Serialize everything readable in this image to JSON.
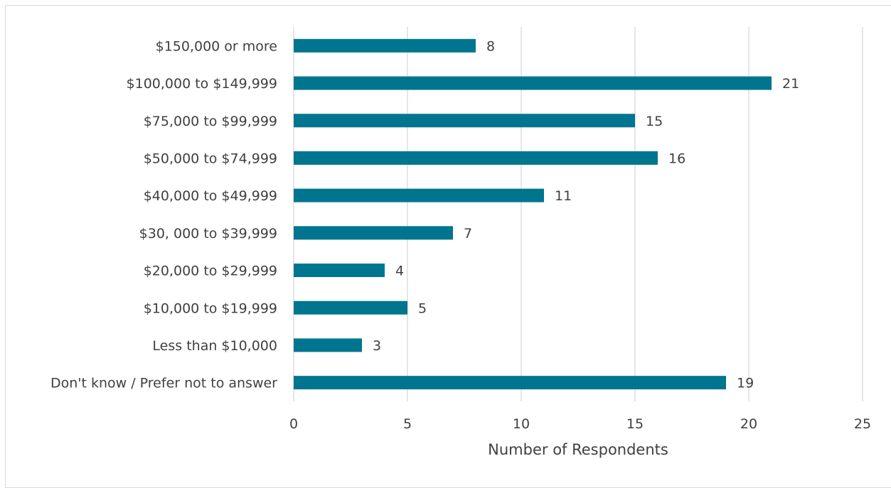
{
  "chart_data": {
    "type": "bar",
    "orientation": "horizontal",
    "categories": [
      "$150,000 or more",
      "$100,000 to $149,999",
      "$75,000 to $99,999",
      "$50,000 to $74,999",
      "$40,000 to $49,999",
      "$30, 000 to $39,999",
      "$20,000 to $29,999",
      "$10,000 to $19,999",
      "Less than $10,000",
      "Don't know / Prefer not to answer"
    ],
    "values": [
      8,
      21,
      15,
      16,
      11,
      7,
      4,
      5,
      3,
      19
    ],
    "xlabel": "Number of Respondents",
    "ylabel": "",
    "title": "",
    "xlim": [
      0,
      25
    ],
    "xticks": [
      "0",
      "5",
      "10",
      "15",
      "20",
      "25"
    ],
    "grid": "vertical",
    "legend": "none",
    "data_labels": true,
    "bar_color": "#00758f",
    "gridline_color": "#d9d9d9"
  }
}
